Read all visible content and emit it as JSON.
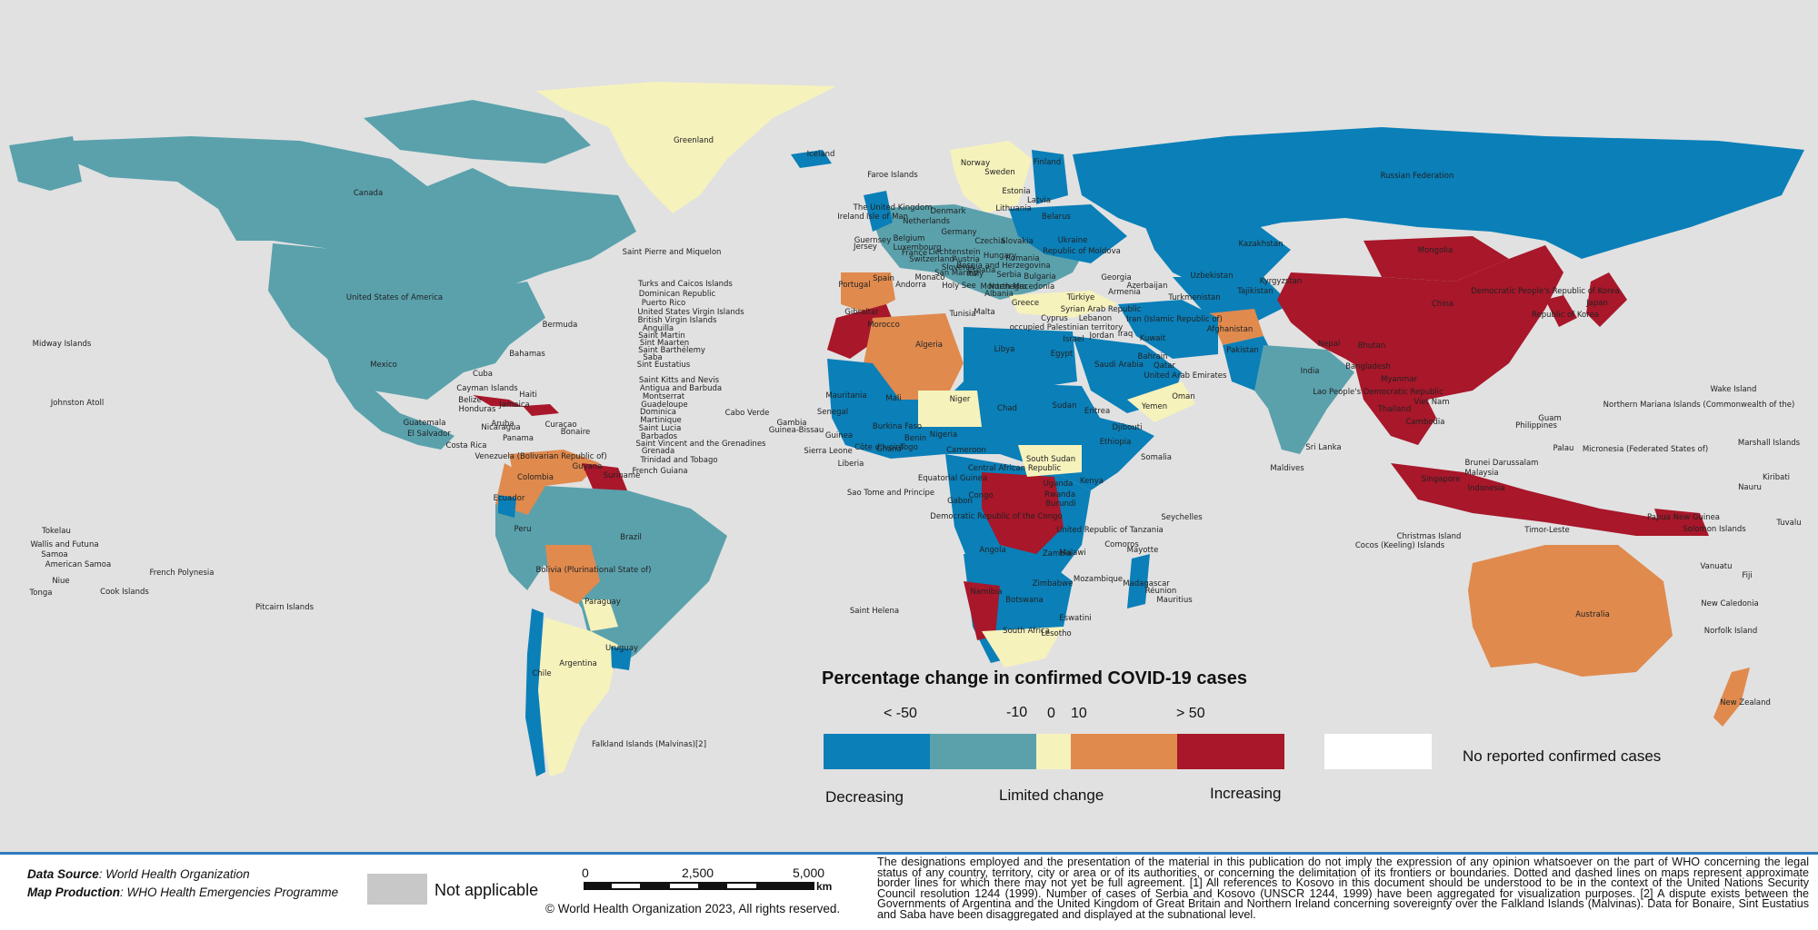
{
  "colors": {
    "background": "#e1e1e1",
    "lt_minus_50": "#0a7fb8",
    "minus_50_to_minus_10": "#5aa1ac",
    "limited": "#f6f2bc",
    "plus_10_to_50": "#e08a4e",
    "gt_50": "#a8172a",
    "no_reported": "#ffffff",
    "not_applicable": "#c8c8c8"
  },
  "legend": {
    "title": "Percentage change in confirmed COVID-19 cases",
    "ticks": [
      "< -50",
      "-10",
      "0",
      "10",
      "> 50"
    ],
    "decreasing": "Decreasing",
    "limited": "Limited change",
    "increasing": "Increasing",
    "no_reported": "No reported confirmed cases"
  },
  "footer": {
    "data_source_key": "Data Source",
    "data_source_value": ": World Health Organization",
    "map_production_key": "Map Production",
    "map_production_value": ": WHO Health Emergencies Programme",
    "not_applicable": "Not applicable",
    "scale_labels": [
      "0",
      "2,500",
      "5,000"
    ],
    "scale_unit": "km",
    "copyright": "© World Health Organization  2023,  All rights reserved.",
    "disclaimer": "The designations employed and the presentation of the material in this publication do not imply the expression of any opinion whatsoever on the part of WHO concerning the legal status of any country, territory, city or area or of its authorities, or concerning the delimitation of its frontiers or boundaries. Dotted and dashed lines on maps represent approximate border lines for which there may not yet be full agreement. [1] All references to Kosovo in this document should be understood to be in the context of the United Nations Security Council resolution 1244 (1999). Number of cases of Serbia and Kosovo (UNSCR 1244, 1999) have been aggregated for visualization purposes. [2] A dispute exists between the Governments of Argentina and the United Kingdom of Great Britain and Northern Ireland concerning sovereignty over the Falkland Islands (Malvinas). Data for Bonaire, Sint Eustatius and Saba have been disaggregated and displayed at the subnational level."
  },
  "country_labels": [
    "Greenland",
    "Iceland",
    "Canada",
    "United States of America",
    "Mexico",
    "Cuba",
    "Bahamas",
    "Bermuda",
    "Saint Pierre and Miquelon",
    "Midway Islands",
    "Johnston Atoll",
    "Guatemala",
    "El Salvador",
    "Belize",
    "Honduras",
    "Nicaragua",
    "Costa Rica",
    "Panama",
    "Jamaica",
    "Haiti",
    "Aruba",
    "Curaçao",
    "Bonaire",
    "Cayman Islands",
    "Turks and Caicos Islands",
    "Dominican Republic",
    "Puerto Rico",
    "United States Virgin Islands",
    "British Virgin Islands",
    "Anguilla",
    "Saint Martin",
    "Sint Maarten",
    "Saint Barthélemy",
    "Saba",
    "Sint Eustatius",
    "Saint Kitts and Nevis",
    "Antigua and Barbuda",
    "Montserrat",
    "Guadeloupe",
    "Dominica",
    "Martinique",
    "Saint Lucia",
    "Barbados",
    "Saint Vincent and the Grenadines",
    "Grenada",
    "Trinidad and Tobago",
    "French Guiana",
    "Cabo Verde",
    "Venezuela (Bolivarian Republic of)",
    "Colombia",
    "Guyana",
    "Suriname",
    "Ecuador",
    "Peru",
    "Brazil",
    "Bolivia (Plurinational State of)",
    "Paraguay",
    "Chile",
    "Argentina",
    "Uruguay",
    "Falkland Islands (Malvinas)[2]",
    "Tokelau",
    "Wallis and Futuna",
    "Samoa",
    "American Samoa",
    "Niue",
    "Tonga",
    "Cook Islands",
    "French Polynesia",
    "Pitcairn Islands",
    "Faroe Islands",
    "The United Kingdom",
    "Ireland",
    "Isle of Man",
    "Guernsey",
    "Jersey",
    "Norway",
    "Sweden",
    "Finland",
    "Estonia",
    "Latvia",
    "Lithuania",
    "Belarus",
    "Denmark",
    "Netherlands",
    "Belgium",
    "Germany",
    "France",
    "Luxembourg",
    "Switzerland",
    "Liechtenstein",
    "Czechia",
    "Slovakia",
    "Austria",
    "Ukraine",
    "Republic of Moldova",
    "Romania",
    "Hungary",
    "Slovenia",
    "Croatia",
    "Bosnia and Herzegovina",
    "Serbia",
    "Montenegro",
    "Albania",
    "North Macedonia",
    "Bulgaria",
    "Greece",
    "Italy",
    "San Marino",
    "Holy See",
    "Monaco",
    "Andorra",
    "Spain",
    "Portugal",
    "Gibraltar",
    "Malta",
    "Türkiye",
    "Cyprus",
    "Georgia",
    "Armenia",
    "Azerbaijan",
    "Russian Federation",
    "Kazakhstan",
    "Uzbekistan",
    "Turkmenistan",
    "Kyrgyzstan",
    "Tajikistan",
    "Afghanistan",
    "Pakistan",
    "India",
    "Nepal",
    "Bhutan",
    "Bangladesh",
    "Sri Lanka",
    "Maldives",
    "Mongolia",
    "China",
    "Democratic People's Republic of Korea",
    "Republic of Korea",
    "Japan",
    "Myanmar",
    "Lao People's Democratic Republic",
    "Thailand",
    "Viet Nam",
    "Cambodia",
    "Philippines",
    "Malaysia",
    "Singapore",
    "Brunei Darussalam",
    "Indonesia",
    "Timor-Leste",
    "Christmas Island",
    "Cocos (Keeling) Islands",
    "Papua New Guinea",
    "Solomon Islands",
    "Australia",
    "New Zealand",
    "New Caledonia",
    "Vanuatu",
    "Fiji",
    "Norfolk Island",
    "Tuvalu",
    "Nauru",
    "Kiribati",
    "Marshall Islands",
    "Micronesia (Federated States of)",
    "Palau",
    "Guam",
    "Northern Mariana Islands (Commonwealth of the)",
    "Wake Island",
    "Syrian Arab Republic",
    "Lebanon",
    "occupied Palestinian territory",
    "Israel",
    "Jordan",
    "Iraq",
    "Iran (Islamic Republic of)",
    "Kuwait",
    "Bahrain",
    "Qatar",
    "Saudi Arabia",
    "United Arab Emirates",
    "Oman",
    "Yemen",
    "Egypt",
    "Libya",
    "Tunisia",
    "Algeria",
    "Morocco",
    "Mauritania",
    "Mali",
    "Niger",
    "Chad",
    "Sudan",
    "Eritrea",
    "Djibouti",
    "Ethiopia",
    "Somalia",
    "South Sudan",
    "Central African Republic",
    "Cameroon",
    "Nigeria",
    "Benin",
    "Togo",
    "Ghana",
    "Burkina Faso",
    "Côte d'Ivoire",
    "Liberia",
    "Sierra Leone",
    "Guinea",
    "Guinea-Bissau",
    "Senegal",
    "Gambia",
    "Equatorial Guinea",
    "Gabon",
    "Congo",
    "Democratic Republic of the Congo",
    "Uganda",
    "Kenya",
    "Rwanda",
    "Burundi",
    "United Republic of Tanzania",
    "Angola",
    "Zambia",
    "Malawi",
    "Mozambique",
    "Zimbabwe",
    "Namibia",
    "Botswana",
    "South Africa",
    "Eswatini",
    "Lesotho",
    "Madagascar",
    "Comoros",
    "Mayotte",
    "Réunion",
    "Mauritius",
    "Seychelles",
    "Sao Tome and Principe",
    "Saint Helena"
  ]
}
